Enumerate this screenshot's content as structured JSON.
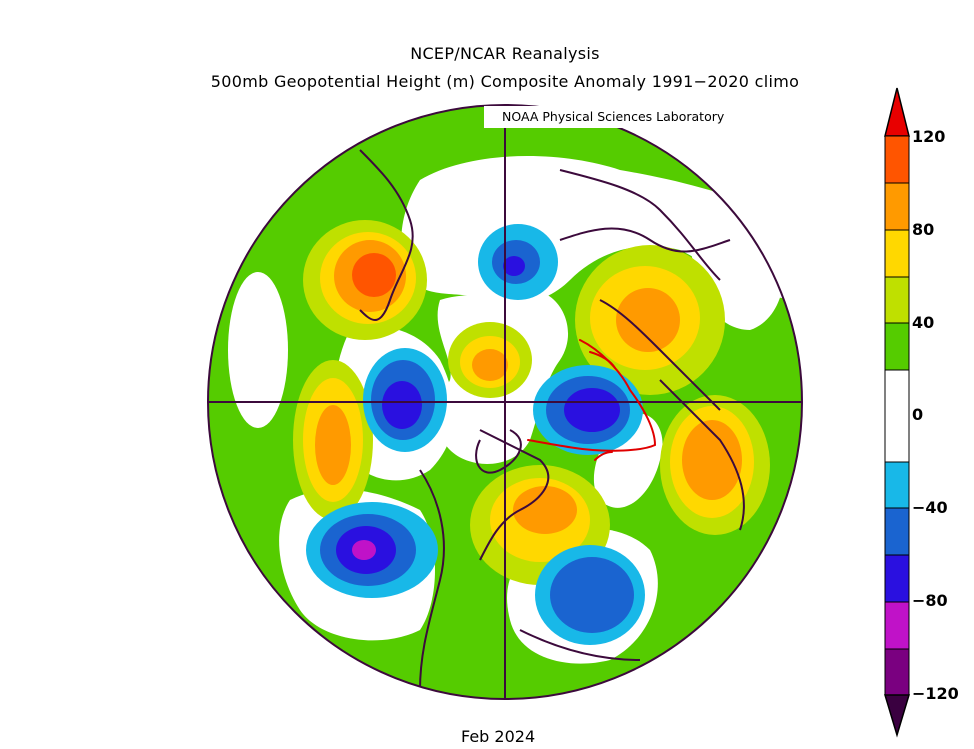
{
  "header": {
    "title": "NCEP/NCAR Reanalysis",
    "subtitle": "500mb Geopotential Height (m) Composite Anomaly 1991−2020 climo",
    "credit": "NOAA Physical Sciences Laboratory"
  },
  "footer": {
    "date": "Feb 2024"
  },
  "colorbar": {
    "labels": [
      "120",
      "80",
      "40",
      "0",
      "−40",
      "−80",
      "−120"
    ],
    "colors": {
      "gt120": "#e80000",
      "100_120": "#ff5500",
      "80_100": "#ff9a00",
      "60_80": "#ffd800",
      "40_60": "#bfe000",
      "20_40": "#55cc00",
      "neutral": "#ffffff",
      "m20_m40": "#18b8e8",
      "m40_m60": "#1a64d0",
      "m60_m80": "#2a10e0",
      "m80_m100": "#c012c8",
      "m100_m120": "#7a0080",
      "lt_m120": "#3a0040"
    }
  },
  "annotation": {
    "color": "#e00000"
  }
}
